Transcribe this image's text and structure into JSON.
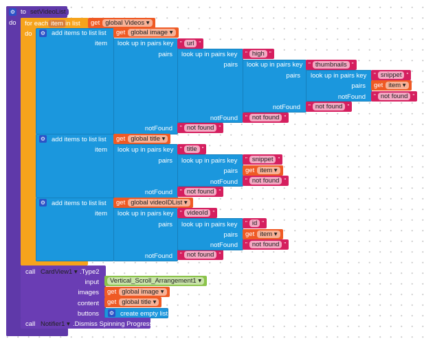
{
  "procedure": {
    "to_label": "to",
    "name": "setVideoList",
    "do_label": "do"
  },
  "for_each": {
    "label": "for each",
    "var": "item",
    "in_list": "in list",
    "do_label": "do",
    "list_get": "get",
    "list_var": "global Videos ▾"
  },
  "common": {
    "add_items": "add items to list",
    "list": "list",
    "item": "item",
    "lookup": "look up in pairs  key",
    "pairs": "pairs",
    "not_found_label": "notFound",
    "get": "get",
    "quote": "\"",
    "not_found": "not found",
    "item_var": "item ▾"
  },
  "add1": {
    "list_var": "global image ▾",
    "keys": [
      "url",
      "high",
      "thumbnails",
      "snippet"
    ]
  },
  "add2": {
    "list_var": "global title ▾",
    "keys": [
      "title",
      "snippet"
    ]
  },
  "add3": {
    "list_var": "global videoIDList ▾",
    "keys": [
      "videoId",
      "id"
    ]
  },
  "cardview": {
    "call": "call",
    "component": "CardView1 ▾",
    "method": ".Type2",
    "input_label": "input",
    "input_value": "Vertical_Scroll_Arrangement1 ▾",
    "images_label": "images",
    "images_var": "global image ▾",
    "content_label": "content",
    "content_var": "global title ▾",
    "buttons_label": "buttons",
    "buttons_value": "create empty list"
  },
  "notifier": {
    "call": "call",
    "component": "Notifier1 ▾",
    "method": ".Dismiss Spinning Progress"
  }
}
